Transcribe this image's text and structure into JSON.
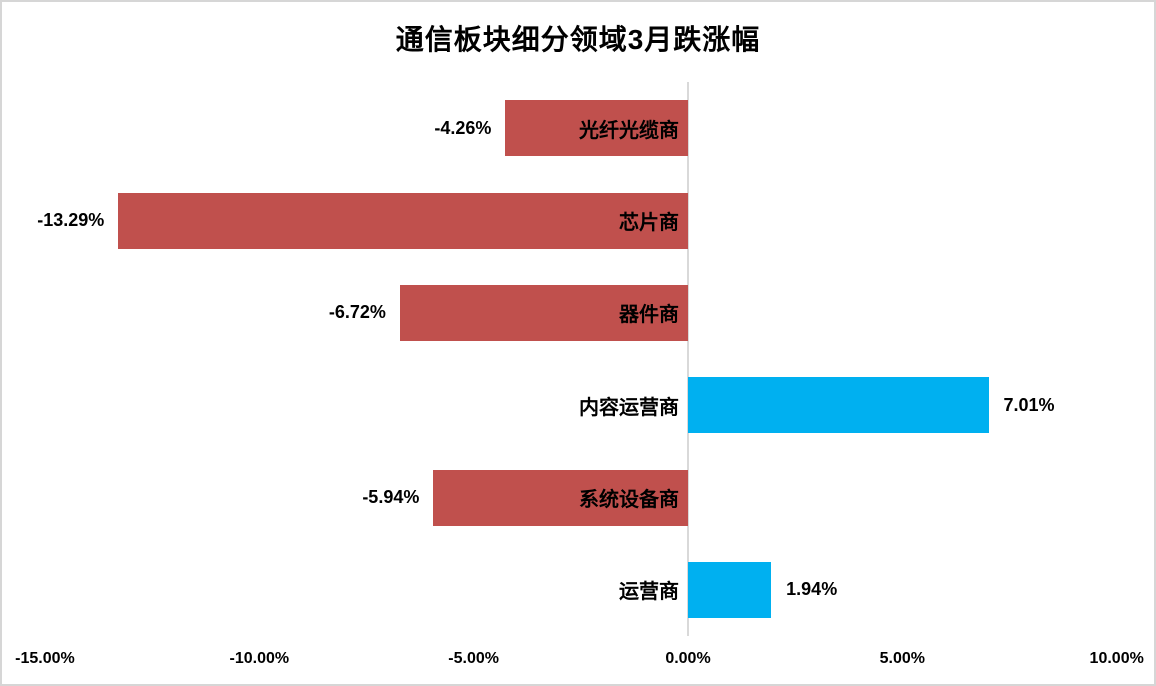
{
  "title": "通信板块细分领域3月跌涨幅",
  "colors": {
    "negative_bar": "#C0504D",
    "positive_bar": "#00B0F0",
    "axis_line": "#D9D9D9",
    "frame_border": "#D6D6D6",
    "text": "#000000",
    "background": "#FFFFFF"
  },
  "chart_data": {
    "type": "bar",
    "orientation": "horizontal",
    "title": "通信板块细分领域3月跌涨幅",
    "xlabel": "",
    "ylabel": "",
    "categories": [
      "光纤光缆商",
      "芯片商",
      "器件商",
      "内容运营商",
      "系统设备商",
      "运营商"
    ],
    "values": [
      -4.26,
      -13.29,
      -6.72,
      7.01,
      -5.94,
      1.94
    ],
    "value_labels": [
      "-4.26%",
      "-13.29%",
      "-6.72%",
      "7.01%",
      "-5.94%",
      "1.94%"
    ],
    "x_tick_values": [
      -15,
      -10,
      -5,
      0,
      5,
      10
    ],
    "x_tick_labels": [
      "-15.00%",
      "-10.00%",
      "-5.00%",
      "0.00%",
      "5.00%",
      "10.00%"
    ],
    "xlim": [
      -16,
      11
    ],
    "grid": false,
    "legend": "none",
    "value_unit": "percent"
  }
}
